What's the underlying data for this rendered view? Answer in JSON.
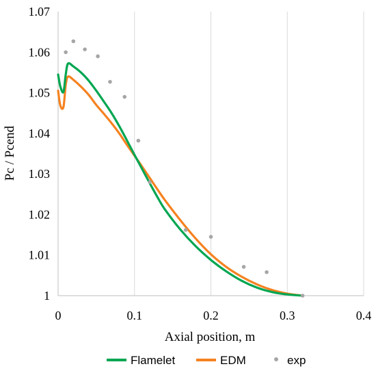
{
  "chart_data": {
    "type": "line",
    "title": "",
    "xlabel": "Axial position, m",
    "ylabel": "Pc / Pcend",
    "xlim": [
      0,
      0.4
    ],
    "ylim": [
      1,
      1.07
    ],
    "x_ticks": [
      0,
      0.1,
      0.2,
      0.3,
      0.4
    ],
    "x_tick_labels": [
      "0",
      "0.1",
      "0.2",
      "0.3",
      "0.4"
    ],
    "y_ticks": [
      1,
      1.01,
      1.02,
      1.03,
      1.04,
      1.05,
      1.06,
      1.07
    ],
    "y_tick_labels": [
      "1",
      "1.01",
      "1.02",
      "1.03",
      "1.04",
      "1.05",
      "1.06",
      "1.07"
    ],
    "grid": "vertical",
    "legend_position": "bottom",
    "series": [
      {
        "name": "Flamelet",
        "kind": "line",
        "color": "#00A651",
        "x": [
          0,
          0.003,
          0.007,
          0.01,
          0.013,
          0.02,
          0.03,
          0.04,
          0.05,
          0.06,
          0.07,
          0.08,
          0.09,
          0.1,
          0.11,
          0.12,
          0.13,
          0.14,
          0.16,
          0.18,
          0.2,
          0.22,
          0.24,
          0.26,
          0.28,
          0.3,
          0.32
        ],
        "y": [
          1.0545,
          1.0515,
          1.0502,
          1.0545,
          1.0572,
          1.0565,
          1.055,
          1.053,
          1.0505,
          1.0478,
          1.045,
          1.0418,
          1.0383,
          1.0347,
          1.0312,
          1.0277,
          1.0243,
          1.0212,
          1.0163,
          1.0122,
          1.0088,
          1.006,
          1.0037,
          1.002,
          1.0009,
          1.0003,
          1.0
        ]
      },
      {
        "name": "EDM",
        "kind": "line",
        "color": "#F58220",
        "x": [
          0,
          0.003,
          0.007,
          0.01,
          0.013,
          0.02,
          0.03,
          0.04,
          0.05,
          0.06,
          0.07,
          0.08,
          0.09,
          0.1,
          0.11,
          0.12,
          0.13,
          0.14,
          0.16,
          0.18,
          0.2,
          0.22,
          0.24,
          0.26,
          0.28,
          0.3,
          0.32
        ],
        "y": [
          1.0505,
          1.0468,
          1.0465,
          1.052,
          1.054,
          1.0532,
          1.0515,
          1.0495,
          1.047,
          1.0448,
          1.0425,
          1.04,
          1.0372,
          1.0345,
          1.0318,
          1.029,
          1.0262,
          1.0235,
          1.0186,
          1.0141,
          1.0102,
          1.0071,
          1.0047,
          1.0028,
          1.0014,
          1.0005,
          1.0
        ]
      },
      {
        "name": "exp",
        "kind": "scatter",
        "color": "#A6A6A6",
        "x": [
          0.01,
          0.02,
          0.035,
          0.052,
          0.068,
          0.087,
          0.105,
          0.12,
          0.167,
          0.2,
          0.243,
          0.273,
          0.32
        ],
        "y": [
          1.06,
          1.0627,
          1.0607,
          1.059,
          1.0527,
          1.049,
          1.0382,
          1.028,
          1.0162,
          1.0145,
          1.0071,
          1.0058,
          1.0
        ]
      }
    ]
  }
}
